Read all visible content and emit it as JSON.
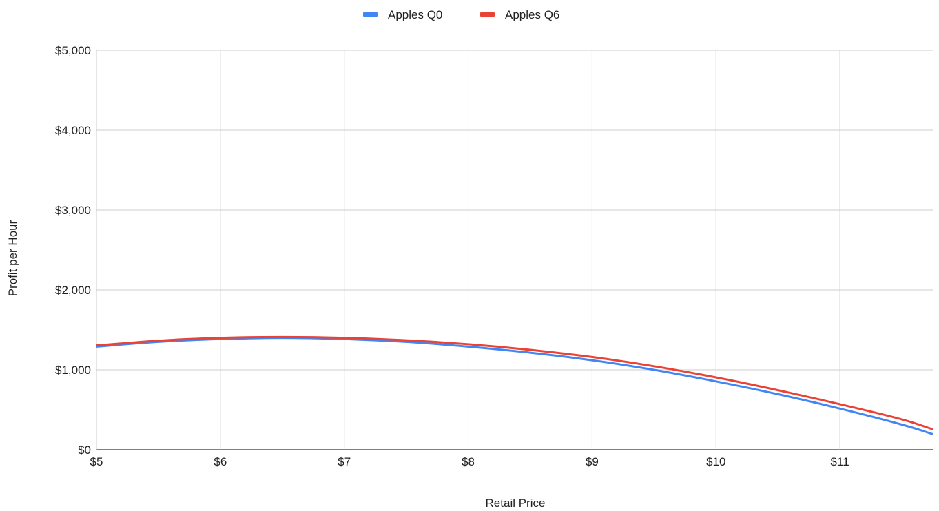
{
  "chart_data": {
    "type": "line",
    "title": "",
    "xlabel": "Retail Price",
    "ylabel": "Profit per Hour",
    "x_ticks": [
      5,
      6,
      7,
      8,
      9,
      10,
      11
    ],
    "x_tick_labels": [
      "$5",
      "$6",
      "$7",
      "$8",
      "$9",
      "$10",
      "$11"
    ],
    "xlim": [
      5,
      11.75
    ],
    "y_ticks": [
      0,
      1000,
      2000,
      3000,
      4000,
      5000
    ],
    "y_tick_labels": [
      "$0",
      "$1,000",
      "$2,000",
      "$3,000",
      "$4,000",
      "$5,000"
    ],
    "ylim": [
      0,
      5000
    ],
    "grid": true,
    "legend_position": "top-center",
    "x": [
      5,
      5.5,
      6,
      6.5,
      7,
      7.5,
      8,
      8.5,
      9,
      9.5,
      10,
      10.5,
      11,
      11.5,
      11.75
    ],
    "series": [
      {
        "name": "Apples Q0",
        "color": "#4285f4",
        "values": [
          1290,
          1350,
          1385,
          1400,
          1385,
          1350,
          1290,
          1215,
          1120,
          1000,
          855,
          695,
          515,
          315,
          195
        ]
      },
      {
        "name": "Apples Q6",
        "color": "#ea4335",
        "values": [
          1305,
          1365,
          1400,
          1410,
          1400,
          1370,
          1320,
          1250,
          1160,
          1045,
          905,
          745,
          570,
          380,
          255
        ]
      }
    ]
  }
}
